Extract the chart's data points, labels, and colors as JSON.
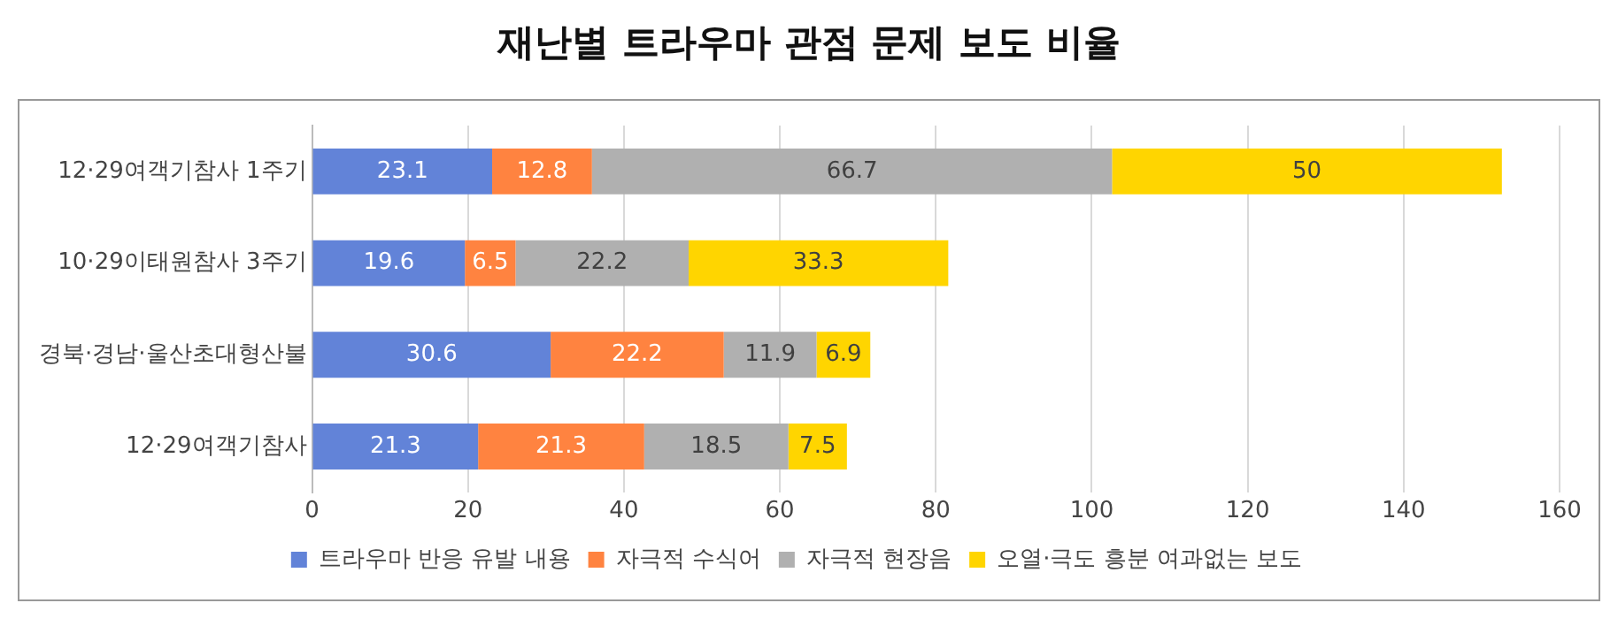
{
  "chart_data": {
    "type": "bar",
    "orientation": "horizontal",
    "stacked": true,
    "title": "재난별 트라우마 관점 문제 보도 비율",
    "categories": [
      "12·29여객기참사 1주기",
      "10·29이태원참사 3주기",
      "경북·경남·울산초대형산불",
      "12·29여객기참사"
    ],
    "series": [
      {
        "name": "트라우마 반응 유발 내용",
        "color": "#6283d8",
        "values": [
          23.1,
          19.6,
          30.6,
          21.3
        ]
      },
      {
        "name": "자극적 수식어",
        "color": "#ff8340",
        "values": [
          12.8,
          6.5,
          22.2,
          21.3
        ]
      },
      {
        "name": "자극적 현장음",
        "color": "#b0b0b0",
        "values": [
          66.7,
          22.2,
          11.9,
          18.5
        ]
      },
      {
        "name": "오열·극도 흥분 여과없는 보도",
        "color": "#ffd500",
        "values": [
          50,
          33.3,
          6.9,
          7.5
        ]
      }
    ],
    "xlim": [
      0,
      160
    ],
    "xticks": [
      0,
      20,
      40,
      60,
      80,
      100,
      120,
      140,
      160
    ],
    "grid": "x",
    "legend": "bottom",
    "data_labels": true
  }
}
